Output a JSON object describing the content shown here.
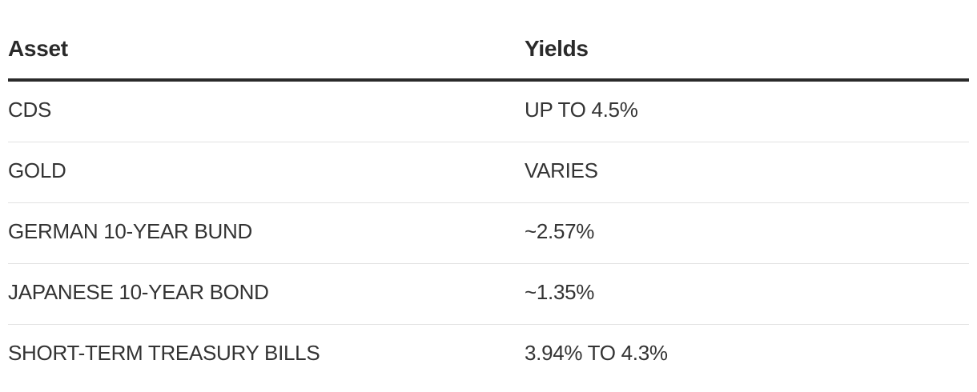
{
  "table": {
    "headers": {
      "asset": "Asset",
      "yields": "Yields"
    },
    "rows": [
      {
        "asset": "CDS",
        "yield": "UP TO 4.5%"
      },
      {
        "asset": "GOLD",
        "yield": "VARIES"
      },
      {
        "asset": "GERMAN 10-YEAR BUND",
        "yield": "~2.57%"
      },
      {
        "asset": "JAPANESE 10-YEAR BOND",
        "yield": "~1.35%"
      },
      {
        "asset": "SHORT-TERM TREASURY BILLS",
        "yield": "3.94% TO 4.3%"
      }
    ]
  }
}
